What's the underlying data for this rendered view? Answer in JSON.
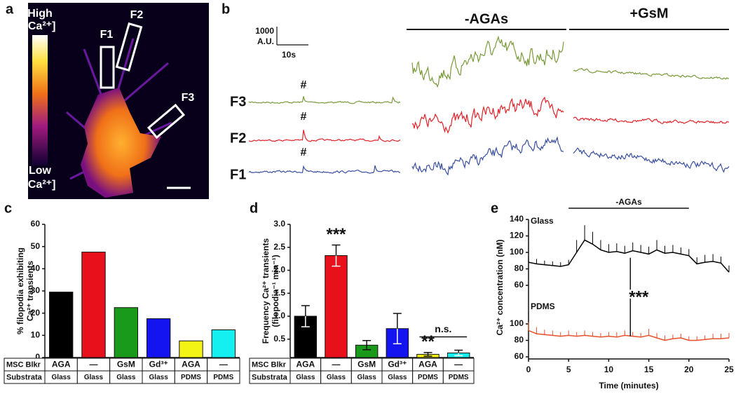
{
  "figure": {
    "panel_a": {
      "letter": "a",
      "scale_high": "High",
      "scale_high_unit": "[Ca²⁺]",
      "scale_low": "Low",
      "scale_low_unit": "[Ca²⁺]",
      "regions": [
        "F1",
        "F2",
        "F3"
      ]
    },
    "panel_b": {
      "letter": "b",
      "scale_y": "1000",
      "scale_y_unit": "A.U.",
      "scale_x": "10s",
      "conditions": [
        "-AGAs",
        "+GsM"
      ],
      "traces": [
        "F3",
        "F2",
        "F1"
      ],
      "peak_marker": "#"
    }
  },
  "chart_data": [
    {
      "type": "bar",
      "panel": "c",
      "ylabel": [
        "% filopodia exhibiting",
        "Ca²⁺ transients"
      ],
      "categories": [
        "AGA",
        "—",
        "GsM",
        "Gd³⁺",
        "AGA",
        "—"
      ],
      "substrata": [
        "Glass",
        "Glass",
        "Glass",
        "Glass",
        "PDMS",
        "PDMS"
      ],
      "row_labels": [
        "MSC Blkr",
        "Substrata"
      ],
      "values": [
        29.5,
        47.5,
        22.5,
        17.5,
        7.5,
        12.5
      ],
      "colors": [
        "#000000",
        "#e8101a",
        "#1a9a1a",
        "#1414f0",
        "#f4f414",
        "#14f0f0"
      ],
      "ylim": [
        0,
        60
      ],
      "yticks": [
        0,
        10,
        20,
        30,
        40,
        50,
        60
      ]
    },
    {
      "type": "bar",
      "panel": "d",
      "ylabel": [
        "Frequency Ca²⁺ transients",
        "(filopodia⁻¹ min⁻¹)"
      ],
      "categories": [
        "AGA",
        "—",
        "GsM",
        "Gd³⁺",
        "AGA",
        "—"
      ],
      "substrata": [
        "Glass",
        "Glass",
        "Glass",
        "Glass",
        "PDMS",
        "PDMS"
      ],
      "row_labels": [
        "MSC Blkr",
        "Substrata"
      ],
      "values": [
        1.0,
        2.32,
        0.37,
        0.73,
        0.17,
        0.2
      ],
      "errors": [
        0.23,
        0.23,
        0.1,
        0.33,
        0.04,
        0.06
      ],
      "colors": [
        "#000000",
        "#e8101a",
        "#1a9a1a",
        "#1414f0",
        "#f4f414",
        "#14f0f0"
      ],
      "value_annotations": [
        null,
        "***",
        null,
        null,
        "**",
        null
      ],
      "bracket_label": "n.s.",
      "ylim": [
        0.1,
        3.0
      ],
      "yticks": [
        {
          "value": 0.5,
          "label": "0.5"
        },
        {
          "value": 1,
          "label": "1.0"
        },
        {
          "value": 1.5,
          "label": "1.5"
        },
        {
          "value": 2,
          "label": "2.0"
        },
        {
          "value": 2.5,
          "label": "2.5"
        },
        {
          "value": 3,
          "label": "3.0"
        }
      ]
    },
    {
      "type": "line",
      "panel": "e",
      "xlabel": "Time (minutes)",
      "ylabel": "Ca²⁺ concentration (nM)",
      "x": [
        0,
        1,
        2,
        3,
        4,
        5,
        6,
        7,
        8,
        9,
        10,
        11,
        12,
        13,
        14,
        15,
        16,
        17,
        18,
        19,
        20,
        21,
        22,
        23,
        24,
        25
      ],
      "xlim": [
        0,
        25
      ],
      "xticks": [
        0,
        5,
        10,
        15,
        20,
        25
      ],
      "series": [
        {
          "name": "Glass",
          "color": "#000000",
          "values": [
            88,
            86,
            85,
            84,
            83,
            85,
            100,
            115,
            110,
            103,
            100,
            101,
            99,
            102,
            100,
            98,
            103,
            99,
            100,
            98,
            96,
            86,
            88,
            89,
            87,
            76
          ],
          "errors": [
            6,
            6,
            5,
            5,
            5,
            6,
            15,
            18,
            15,
            12,
            10,
            10,
            9,
            10,
            9,
            9,
            12,
            9,
            9,
            8,
            8,
            8,
            9,
            9,
            8,
            8
          ],
          "ylim": [
            60,
            140
          ],
          "yticks": [
            60,
            80,
            100,
            120,
            140
          ]
        },
        {
          "name": "PDMS",
          "color": "#e8502a",
          "values": [
            92,
            88,
            87,
            86,
            85,
            86,
            85,
            86,
            85,
            84,
            85,
            84,
            86,
            85,
            84,
            86,
            83,
            80,
            82,
            83,
            80,
            80,
            81,
            82,
            82,
            83
          ],
          "errors": [
            10,
            8,
            6,
            6,
            5,
            6,
            5,
            6,
            5,
            5,
            5,
            6,
            6,
            5,
            5,
            8,
            6,
            6,
            5,
            5,
            5,
            5,
            5,
            6,
            6,
            6
          ],
          "ylim": [
            60,
            100
          ],
          "yticks": [
            60,
            80,
            100
          ]
        }
      ],
      "treatment": {
        "label": "-AGAs",
        "start": 5,
        "end": 20
      },
      "significance": "***"
    }
  ]
}
